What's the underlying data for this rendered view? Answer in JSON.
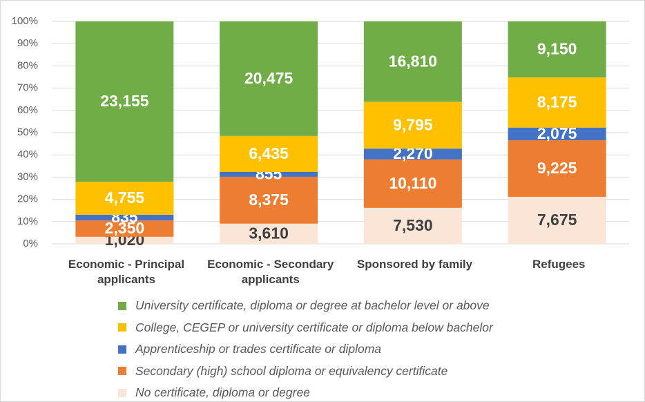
{
  "chart_data": {
    "type": "percent_stacked_bar",
    "categories": [
      "Economic  - Principal applicants",
      "Economic  - Secondary applicants",
      "Sponsored by family",
      "Refugees"
    ],
    "series": [
      {
        "name": "University certificate, diploma or degree at bachelor level or above",
        "color": "#70ad47",
        "label_color": "#ffffff",
        "values": [
          23155,
          20475,
          16810,
          9150
        ],
        "value_labels": [
          "23,155",
          "20,475",
          "16,810",
          "9,150"
        ]
      },
      {
        "name": "College, CEGEP or university certificate or diploma below bachelor",
        "color": "#ffc000",
        "label_color": "#ffffff",
        "values": [
          4755,
          6435,
          9795,
          8175
        ],
        "value_labels": [
          "4,755",
          "6,435",
          "9,795",
          "8,175"
        ]
      },
      {
        "name": "Apprenticeship or trades certificate or diploma",
        "color": "#4472c4",
        "label_color": "#ffffff",
        "values": [
          835,
          855,
          2270,
          2075
        ],
        "value_labels": [
          "835",
          "855",
          "2,270",
          "2,075"
        ]
      },
      {
        "name": "Secondary (high) school diploma or equivalency certificate",
        "color": "#ed7d31",
        "label_color": "#ffffff",
        "values": [
          2350,
          8375,
          10110,
          9225
        ],
        "value_labels": [
          "2,350",
          "8,375",
          "10,110",
          "9,225"
        ]
      },
      {
        "name": "No certificate, diploma or degree",
        "color": "#fbe5d6",
        "label_color": "#404040",
        "values": [
          1020,
          3610,
          7530,
          7675
        ],
        "value_labels": [
          "1,020",
          "3,610",
          "7,530",
          "7,675"
        ]
      }
    ],
    "ylim": [
      0,
      100
    ],
    "yticks": [
      {
        "value": 0,
        "label": "0%"
      },
      {
        "value": 10,
        "label": "10%"
      },
      {
        "value": 20,
        "label": "20%"
      },
      {
        "value": 30,
        "label": "30%"
      },
      {
        "value": 40,
        "label": "40%"
      },
      {
        "value": 50,
        "label": "50%"
      },
      {
        "value": 60,
        "label": "60%"
      },
      {
        "value": 70,
        "label": "70%"
      },
      {
        "value": 80,
        "label": "80%"
      },
      {
        "value": 90,
        "label": "90%"
      },
      {
        "value": 100,
        "label": "100%"
      }
    ],
    "grid": true
  }
}
